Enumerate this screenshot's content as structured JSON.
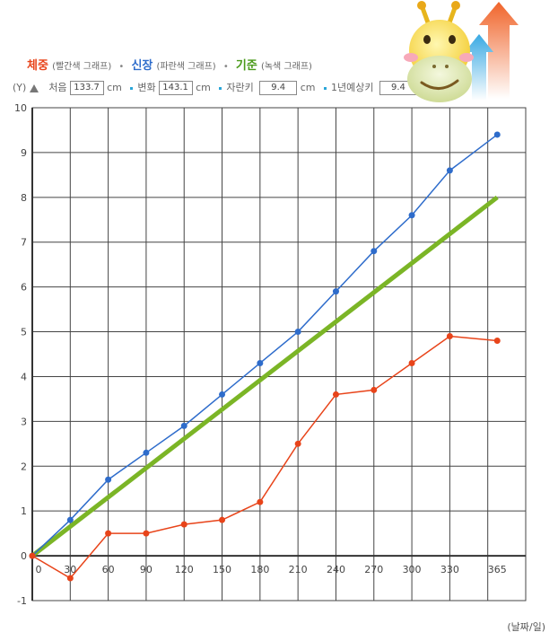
{
  "legend": {
    "weight": {
      "title": "체중",
      "sub": "(빨간색 그래프)",
      "color": "#e8441a"
    },
    "height": {
      "title": "신장",
      "sub": "(파란색 그래프)",
      "color": "#2e6ccb"
    },
    "standard": {
      "title": "기준",
      "sub": "(녹색 그래프)",
      "color": "#7bb526"
    },
    "separator": "•"
  },
  "info": {
    "y_label": "(Y)",
    "start_label": "처음",
    "start_value": "133.7",
    "start_unit": "cm",
    "change_label": "변화",
    "change_value": "143.1",
    "change_unit": "cm",
    "grown_label": "자란키",
    "grown_value": "9.4",
    "grown_unit": "cm",
    "predicted_label": "1년예상키",
    "predicted_value": "9.4",
    "predicted_unit": "cm"
  },
  "x_unit_label": "(날짜/일)",
  "chart_data": {
    "type": "line",
    "x_tick_labels": [
      "0",
      "30",
      "60",
      "90",
      "120",
      "150",
      "180",
      "210",
      "240",
      "270",
      "300",
      "330",
      "365"
    ],
    "y_tick_labels": [
      "10",
      "9",
      "8",
      "7",
      "6",
      "5",
      "4",
      "3",
      "2",
      "1",
      "0",
      "-1"
    ],
    "ylim": [
      -1,
      10
    ],
    "grid": true,
    "series": [
      {
        "key": "height",
        "color": "#2e6ccb",
        "x": [
          0,
          30,
          60,
          90,
          120,
          150,
          180,
          210,
          240,
          270,
          300,
          330,
          365
        ],
        "y": [
          0,
          0.8,
          1.7,
          2.3,
          2.9,
          3.6,
          4.3,
          5.0,
          5.9,
          6.8,
          7.6,
          8.6,
          9.4
        ]
      },
      {
        "key": "weight",
        "color": "#e8441a",
        "x": [
          0,
          30,
          60,
          90,
          120,
          150,
          180,
          210,
          240,
          270,
          300,
          330,
          365
        ],
        "y": [
          0,
          -0.5,
          0.5,
          0.5,
          0.7,
          0.8,
          1.2,
          2.5,
          3.6,
          3.7,
          4.3,
          4.9,
          4.8
        ]
      },
      {
        "key": "standard",
        "color": "#7bb526",
        "x": [
          0,
          365
        ],
        "y": [
          0,
          8.0
        ]
      }
    ]
  }
}
